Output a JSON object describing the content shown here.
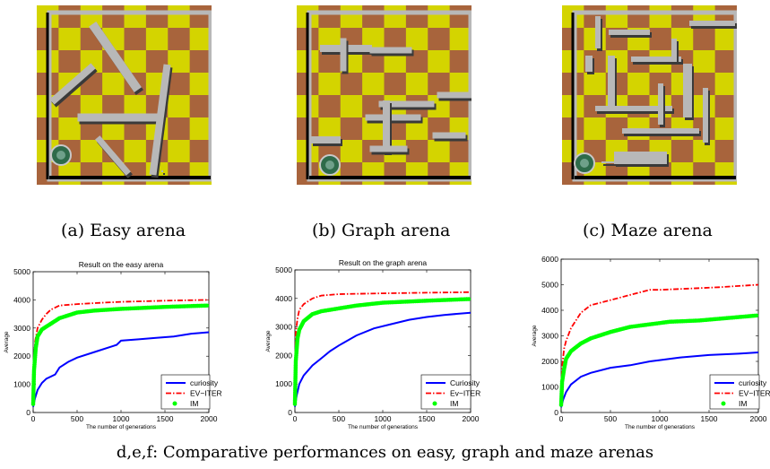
{
  "arenas": [
    {
      "caption": "(a) Easy arena"
    },
    {
      "caption": "(b) Graph arena"
    },
    {
      "caption": "(c) Maze arena"
    }
  ],
  "figure_caption": "d,e,f: Comparative performances on easy, graph and maze arenas",
  "colors": {
    "checker_a": "#d4d400",
    "checker_b": "#a8643c",
    "wall": "#b8b8b8",
    "robot": "#2e6b4a",
    "curiosity": "#0000ff",
    "ev_iter": "#ff0000",
    "im": "#00ff00"
  },
  "chart_data": [
    {
      "type": "line",
      "title": "Result on the easy arena",
      "xlabel": "The number of generations",
      "ylabel": "Average",
      "xlim": [
        0,
        2000
      ],
      "ylim": [
        0,
        5000
      ],
      "xticks": [
        0,
        500,
        1000,
        1500,
        2000
      ],
      "yticks": [
        0,
        1000,
        2000,
        3000,
        4000,
        5000
      ],
      "legend": "bottom-right",
      "series": [
        {
          "name": "curiosity",
          "style": "solid",
          "points": [
            [
              0,
              200
            ],
            [
              20,
              500
            ],
            [
              50,
              800
            ],
            [
              100,
              1050
            ],
            [
              150,
              1200
            ],
            [
              250,
              1350
            ],
            [
              300,
              1600
            ],
            [
              400,
              1800
            ],
            [
              500,
              1950
            ],
            [
              700,
              2150
            ],
            [
              900,
              2350
            ],
            [
              950,
              2400
            ],
            [
              1000,
              2550
            ],
            [
              1200,
              2600
            ],
            [
              1400,
              2650
            ],
            [
              1600,
              2700
            ],
            [
              1800,
              2800
            ],
            [
              2000,
              2850
            ]
          ]
        },
        {
          "name": "EV−ITER",
          "style": "dashdot",
          "points": [
            [
              0,
              300
            ],
            [
              20,
              2500
            ],
            [
              50,
              3000
            ],
            [
              100,
              3300
            ],
            [
              150,
              3500
            ],
            [
              200,
              3650
            ],
            [
              300,
              3800
            ],
            [
              500,
              3850
            ],
            [
              800,
              3900
            ],
            [
              1000,
              3930
            ],
            [
              1500,
              3970
            ],
            [
              2000,
              4000
            ]
          ]
        },
        {
          "name": "IM",
          "style": "dots",
          "points": [
            [
              0,
              300
            ],
            [
              10,
              1500
            ],
            [
              30,
              2300
            ],
            [
              50,
              2700
            ],
            [
              100,
              2950
            ],
            [
              200,
              3150
            ],
            [
              300,
              3350
            ],
            [
              400,
              3450
            ],
            [
              500,
              3550
            ],
            [
              700,
              3620
            ],
            [
              1000,
              3680
            ],
            [
              1500,
              3750
            ],
            [
              2000,
              3800
            ]
          ]
        }
      ]
    },
    {
      "type": "line",
      "title": "Result on the graph arena",
      "xlabel": "The number of generations",
      "ylabel": "Average",
      "xlim": [
        0,
        2000
      ],
      "ylim": [
        0,
        5000
      ],
      "xticks": [
        0,
        500,
        1000,
        1500,
        2000
      ],
      "yticks": [
        0,
        1000,
        2000,
        3000,
        4000,
        5000
      ],
      "legend": "bottom-right",
      "series": [
        {
          "name": "Curiosity",
          "style": "solid",
          "points": [
            [
              0,
              200
            ],
            [
              20,
              600
            ],
            [
              50,
              1000
            ],
            [
              100,
              1300
            ],
            [
              200,
              1650
            ],
            [
              300,
              1900
            ],
            [
              400,
              2150
            ],
            [
              500,
              2350
            ],
            [
              700,
              2700
            ],
            [
              900,
              2950
            ],
            [
              1100,
              3100
            ],
            [
              1300,
              3250
            ],
            [
              1500,
              3350
            ],
            [
              1700,
              3420
            ],
            [
              2000,
              3500
            ]
          ]
        },
        {
          "name": "Ev−ITER",
          "style": "dashdot",
          "points": [
            [
              0,
              500
            ],
            [
              10,
              2800
            ],
            [
              30,
              3300
            ],
            [
              50,
              3600
            ],
            [
              100,
              3800
            ],
            [
              200,
              4000
            ],
            [
              300,
              4100
            ],
            [
              500,
              4150
            ],
            [
              1000,
              4180
            ],
            [
              1500,
              4200
            ],
            [
              2000,
              4220
            ]
          ]
        },
        {
          "name": "IM",
          "style": "dots",
          "points": [
            [
              0,
              300
            ],
            [
              10,
              1800
            ],
            [
              30,
              2600
            ],
            [
              50,
              2900
            ],
            [
              100,
              3200
            ],
            [
              200,
              3450
            ],
            [
              300,
              3550
            ],
            [
              500,
              3650
            ],
            [
              700,
              3750
            ],
            [
              1000,
              3850
            ],
            [
              1500,
              3920
            ],
            [
              2000,
              3980
            ]
          ]
        }
      ]
    },
    {
      "type": "line",
      "title": "Result on the maze arena",
      "xlabel": "The number of generations",
      "ylabel": "Average",
      "xlim": [
        0,
        2000
      ],
      "ylim": [
        0,
        6000
      ],
      "xticks": [
        0,
        500,
        1000,
        1500,
        2000
      ],
      "yticks": [
        0,
        1000,
        2000,
        3000,
        4000,
        5000,
        6000
      ],
      "legend": "bottom-right",
      "series": [
        {
          "name": "curiosity",
          "style": "solid",
          "points": [
            [
              0,
              200
            ],
            [
              20,
              500
            ],
            [
              50,
              800
            ],
            [
              100,
              1100
            ],
            [
              200,
              1400
            ],
            [
              300,
              1550
            ],
            [
              500,
              1750
            ],
            [
              700,
              1850
            ],
            [
              900,
              2000
            ],
            [
              1000,
              2050
            ],
            [
              1200,
              2150
            ],
            [
              1500,
              2250
            ],
            [
              1800,
              2300
            ],
            [
              2000,
              2350
            ]
          ]
        },
        {
          "name": "EV−ITER",
          "style": "dashdot",
          "points": [
            [
              0,
              600
            ],
            [
              10,
              1800
            ],
            [
              30,
              2500
            ],
            [
              50,
              2800
            ],
            [
              100,
              3300
            ],
            [
              200,
              3900
            ],
            [
              300,
              4200
            ],
            [
              500,
              4400
            ],
            [
              700,
              4600
            ],
            [
              900,
              4800
            ],
            [
              1000,
              4800
            ],
            [
              1300,
              4850
            ],
            [
              1600,
              4900
            ],
            [
              2000,
              5000
            ]
          ]
        },
        {
          "name": "IM",
          "style": "dots",
          "points": [
            [
              0,
              300
            ],
            [
              10,
              1200
            ],
            [
              30,
              1700
            ],
            [
              50,
              2100
            ],
            [
              100,
              2400
            ],
            [
              200,
              2700
            ],
            [
              300,
              2900
            ],
            [
              500,
              3150
            ],
            [
              700,
              3350
            ],
            [
              900,
              3450
            ],
            [
              1100,
              3550
            ],
            [
              1400,
              3600
            ],
            [
              1700,
              3700
            ],
            [
              2000,
              3800
            ]
          ]
        }
      ]
    }
  ]
}
